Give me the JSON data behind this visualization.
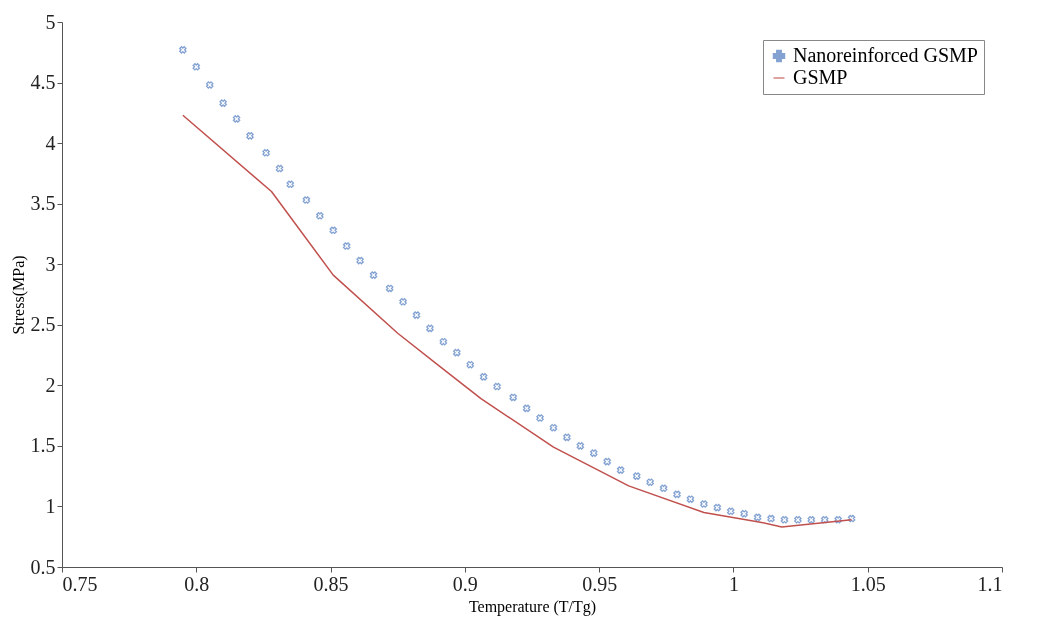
{
  "chart_data": {
    "type": "scatter",
    "xlabel": "Temperature (T/Tg)",
    "ylabel": "Stress(MPa)",
    "xlim": [
      0.75,
      1.1
    ],
    "xticks": [
      0.75,
      0.8,
      0.85,
      0.9,
      0.95,
      1,
      1.05,
      1.1
    ],
    "ylim": [
      0.5,
      5
    ],
    "yticks": [
      0.5,
      1,
      1.5,
      2,
      2.5,
      3,
      3.5,
      4,
      4.5,
      5
    ],
    "grid": false,
    "legend": "top right",
    "series": [
      {
        "name": "Nanoreinforced GSMP",
        "marker": "cross",
        "color": "#4f7bbf",
        "x": [
          0.795,
          0.8,
          0.805,
          0.81,
          0.815,
          0.82,
          0.826,
          0.831,
          0.835,
          0.841,
          0.846,
          0.851,
          0.856,
          0.861,
          0.866,
          0.872,
          0.877,
          0.882,
          0.887,
          0.892,
          0.897,
          0.902,
          0.907,
          0.912,
          0.918,
          0.923,
          0.928,
          0.933,
          0.938,
          0.943,
          0.948,
          0.953,
          0.958,
          0.964,
          0.969,
          0.974,
          0.979,
          0.984,
          0.989,
          0.994,
          0.999,
          1.004,
          1.009,
          1.014,
          1.019,
          1.024,
          1.029,
          1.034,
          1.039,
          1.044
        ],
        "values": [
          4.77,
          4.63,
          4.48,
          4.33,
          4.2,
          4.06,
          3.92,
          3.79,
          3.66,
          3.53,
          3.4,
          3.28,
          3.15,
          3.03,
          2.91,
          2.8,
          2.69,
          2.58,
          2.47,
          2.36,
          2.27,
          2.17,
          2.07,
          1.99,
          1.9,
          1.81,
          1.73,
          1.65,
          1.57,
          1.5,
          1.44,
          1.37,
          1.3,
          1.25,
          1.2,
          1.15,
          1.1,
          1.06,
          1.02,
          0.99,
          0.96,
          0.94,
          0.91,
          0.9,
          0.89,
          0.89,
          0.89,
          0.89,
          0.89,
          0.9
        ]
      },
      {
        "name": "GSMP",
        "type": "line",
        "color": "#c0504d",
        "line_style": "solid",
        "marker": "none",
        "x": [
          0.795,
          0.828,
          0.851,
          0.875,
          0.891,
          0.906,
          0.933,
          0.961,
          0.989,
          1.01,
          1.018,
          1.044
        ],
        "values": [
          4.23,
          3.6,
          2.91,
          2.43,
          2.15,
          1.89,
          1.49,
          1.17,
          0.95,
          0.87,
          0.83,
          0.89
        ]
      }
    ]
  }
}
